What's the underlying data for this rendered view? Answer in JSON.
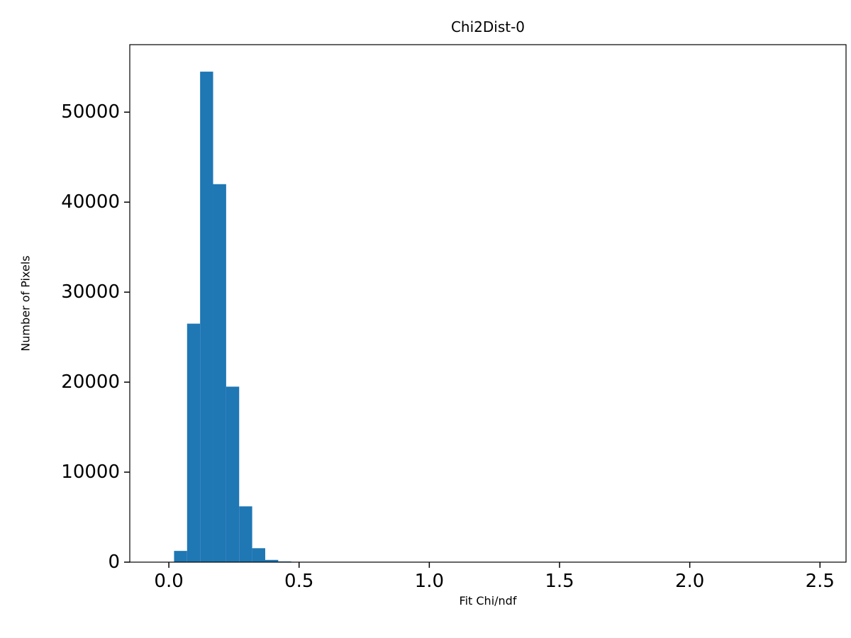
{
  "chart_data": {
    "type": "bar",
    "subtype": "histogram",
    "title": "Chi2Dist-0",
    "xlabel": "Fit Chi/ndf",
    "ylabel": "Number of Pixels",
    "bar_color": "#1f77b4",
    "background_color": "#ffffff",
    "axis_color": "#000000",
    "grid": false,
    "legend": false,
    "xlim": [
      -0.15,
      2.6
    ],
    "ylim": [
      0,
      57500
    ],
    "xticks": [
      0.0,
      0.5,
      1.0,
      1.5,
      2.0,
      2.5
    ],
    "xtick_labels": [
      "0.0",
      "0.5",
      "1.0",
      "1.5",
      "2.0",
      "2.5"
    ],
    "yticks": [
      0,
      10000,
      20000,
      30000,
      40000,
      50000
    ],
    "ytick_labels": [
      "0",
      "10000",
      "20000",
      "30000",
      "40000",
      "50000"
    ],
    "bin_edges": [
      0.02,
      0.07,
      0.12,
      0.17,
      0.22,
      0.27,
      0.32,
      0.37,
      0.42,
      0.47
    ],
    "counts": [
      1250,
      26500,
      54500,
      42000,
      19500,
      6200,
      1550,
      250,
      80
    ]
  }
}
